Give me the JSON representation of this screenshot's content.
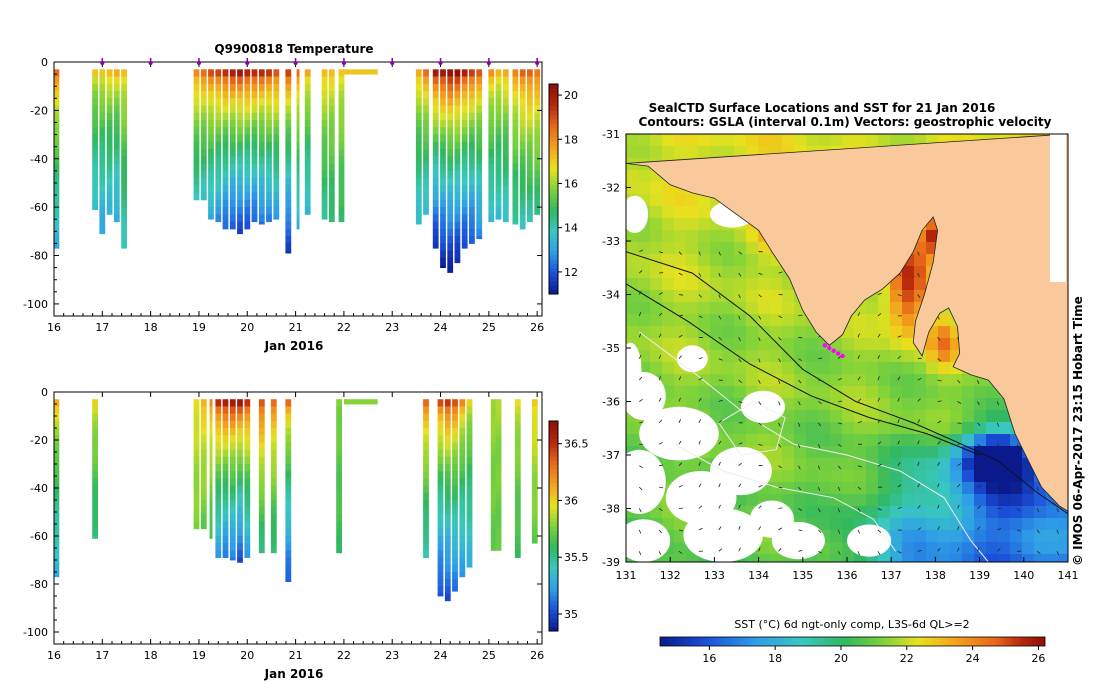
{
  "colors": {
    "ramp": [
      "#0a1a8c",
      "#1b4fd8",
      "#2f9ee8",
      "#39c7c0",
      "#31b85f",
      "#7fd23a",
      "#e8e21e",
      "#f4a21c",
      "#e8681a",
      "#b8280c",
      "#8c0f0a"
    ],
    "land": "#f9c89b",
    "profile_marker": "#8800aa",
    "track": "#ff00ff"
  },
  "chart_data": [
    {
      "id": "temperature-section",
      "type": "heatmap",
      "title": "Q9900818  Temperature",
      "xlabel": "Jan 2016",
      "ylabel": "",
      "xlim": [
        16,
        26.1
      ],
      "ylim": [
        -105,
        0
      ],
      "x_ticks": [
        "16",
        "17",
        "18",
        "19",
        "20",
        "21",
        "22",
        "23",
        "24",
        "25",
        "26"
      ],
      "y_ticks": [
        "0",
        "-20",
        "-40",
        "-60",
        "-80",
        "-100"
      ],
      "profile_markers": [
        17,
        18,
        19,
        20,
        21,
        22,
        23,
        24,
        25,
        26
      ],
      "colorbar": {
        "min": 11,
        "max": 20.5,
        "ticks": [
          "12",
          "14",
          "16",
          "18",
          "20"
        ]
      },
      "profiles": [
        {
          "t": 16.05,
          "w": 0.12,
          "depth": 77,
          "surf": 18.4,
          "bot": 13.2
        },
        {
          "t": 16.85,
          "w": 0.12,
          "depth": 61,
          "surf": 17.0,
          "bot": 13.4
        },
        {
          "t": 17.0,
          "w": 0.12,
          "depth": 71,
          "surf": 17.2,
          "bot": 13.0
        },
        {
          "t": 17.15,
          "w": 0.12,
          "depth": 63,
          "surf": 17.3,
          "bot": 13.3
        },
        {
          "t": 17.3,
          "w": 0.12,
          "depth": 66,
          "surf": 17.4,
          "bot": 13.0
        },
        {
          "t": 17.45,
          "w": 0.12,
          "depth": 77,
          "surf": 17.2,
          "bot": 13.8
        },
        {
          "t": 18.95,
          "w": 0.12,
          "depth": 57,
          "surf": 18.2,
          "bot": 13.8
        },
        {
          "t": 19.1,
          "w": 0.12,
          "depth": 57,
          "surf": 18.5,
          "bot": 13.6
        },
        {
          "t": 19.25,
          "w": 0.12,
          "depth": 65,
          "surf": 18.9,
          "bot": 13.0
        },
        {
          "t": 19.4,
          "w": 0.12,
          "depth": 66,
          "surf": 19.2,
          "bot": 12.6
        },
        {
          "t": 19.55,
          "w": 0.12,
          "depth": 69,
          "surf": 19.6,
          "bot": 12.0
        },
        {
          "t": 19.7,
          "w": 0.12,
          "depth": 69,
          "surf": 19.8,
          "bot": 11.8
        },
        {
          "t": 19.85,
          "w": 0.12,
          "depth": 71,
          "surf": 20.0,
          "bot": 11.6
        },
        {
          "t": 20.0,
          "w": 0.12,
          "depth": 69,
          "surf": 19.8,
          "bot": 11.8
        },
        {
          "t": 20.15,
          "w": 0.12,
          "depth": 66,
          "surf": 19.6,
          "bot": 12.0
        },
        {
          "t": 20.3,
          "w": 0.12,
          "depth": 67,
          "surf": 19.4,
          "bot": 12.2
        },
        {
          "t": 20.45,
          "w": 0.12,
          "depth": 66,
          "surf": 19.3,
          "bot": 12.4
        },
        {
          "t": 20.6,
          "w": 0.12,
          "depth": 65,
          "surf": 19.0,
          "bot": 12.8
        },
        {
          "t": 20.85,
          "w": 0.12,
          "depth": 79,
          "surf": 19.2,
          "bot": 11.5
        },
        {
          "t": 21.05,
          "w": 0.06,
          "depth": 69,
          "surf": 18.4,
          "bot": 13.2
        },
        {
          "t": 21.25,
          "w": 0.12,
          "depth": 63,
          "surf": 17.6,
          "bot": 13.3
        },
        {
          "t": 21.6,
          "w": 0.12,
          "depth": 65,
          "surf": 17.4,
          "bot": 14.2
        },
        {
          "t": 21.75,
          "w": 0.12,
          "depth": 66,
          "surf": 17.2,
          "bot": 14.4
        },
        {
          "t": 21.95,
          "w": 0.12,
          "depth": 66,
          "surf": 17.0,
          "bot": 14.6
        },
        {
          "t": 22.35,
          "w": 0.7,
          "depth": 5,
          "surf": 17.2,
          "bot": 17.2
        },
        {
          "t": 23.55,
          "w": 0.12,
          "depth": 67,
          "surf": 17.6,
          "bot": 13.4
        },
        {
          "t": 23.7,
          "w": 0.12,
          "depth": 63,
          "surf": 18.4,
          "bot": 13.3
        },
        {
          "t": 23.9,
          "w": 0.12,
          "depth": 77,
          "surf": 20.0,
          "bot": 11.3
        },
        {
          "t": 24.05,
          "w": 0.12,
          "depth": 85,
          "surf": 20.2,
          "bot": 11.0
        },
        {
          "t": 24.2,
          "w": 0.12,
          "depth": 87,
          "surf": 20.4,
          "bot": 11.0
        },
        {
          "t": 24.35,
          "w": 0.12,
          "depth": 83,
          "surf": 20.3,
          "bot": 11.2
        },
        {
          "t": 24.5,
          "w": 0.12,
          "depth": 77,
          "surf": 19.8,
          "bot": 11.6
        },
        {
          "t": 24.65,
          "w": 0.12,
          "depth": 75,
          "surf": 19.4,
          "bot": 11.8
        },
        {
          "t": 24.8,
          "w": 0.12,
          "depth": 73,
          "surf": 18.8,
          "bot": 12.4
        },
        {
          "t": 25.05,
          "w": 0.12,
          "depth": 66,
          "surf": 17.8,
          "bot": 13.4
        },
        {
          "t": 25.2,
          "w": 0.12,
          "depth": 65,
          "surf": 17.4,
          "bot": 13.5
        },
        {
          "t": 25.35,
          "w": 0.12,
          "depth": 66,
          "surf": 17.6,
          "bot": 13.6
        },
        {
          "t": 25.55,
          "w": 0.12,
          "depth": 67,
          "surf": 18.0,
          "bot": 14.0
        },
        {
          "t": 25.7,
          "w": 0.12,
          "depth": 69,
          "surf": 18.6,
          "bot": 13.8
        },
        {
          "t": 25.85,
          "w": 0.12,
          "depth": 66,
          "surf": 18.8,
          "bot": 14.0
        },
        {
          "t": 26.0,
          "w": 0.12,
          "depth": 63,
          "surf": 18.4,
          "bot": 14.4
        }
      ]
    },
    {
      "id": "salinity-section",
      "type": "heatmap",
      "title": "",
      "xlabel": "Jan 2016",
      "ylabel": "",
      "xlim": [
        16,
        26.1
      ],
      "ylim": [
        -105,
        0
      ],
      "x_ticks": [
        "16",
        "17",
        "18",
        "19",
        "20",
        "21",
        "22",
        "23",
        "24",
        "25",
        "26"
      ],
      "y_ticks": [
        "0",
        "-20",
        "-40",
        "-60",
        "-80",
        "-100"
      ],
      "colorbar": {
        "min": 34.85,
        "max": 36.7,
        "ticks": [
          "35",
          "35.5",
          "36",
          "36.5"
        ]
      },
      "profiles": [
        {
          "t": 16.05,
          "w": 0.12,
          "depth": 77,
          "surf": 36.1,
          "bot": 35.3
        },
        {
          "t": 16.85,
          "w": 0.12,
          "depth": 61,
          "surf": 36.0,
          "bot": 35.5
        },
        {
          "t": 18.95,
          "w": 0.12,
          "depth": 57,
          "surf": 36.0,
          "bot": 35.75
        },
        {
          "t": 19.1,
          "w": 0.12,
          "depth": 57,
          "surf": 36.1,
          "bot": 35.7
        },
        {
          "t": 19.25,
          "w": 0.06,
          "depth": 61,
          "surf": 36.2,
          "bot": 35.6
        },
        {
          "t": 19.4,
          "w": 0.12,
          "depth": 69,
          "surf": 36.5,
          "bot": 35.2
        },
        {
          "t": 19.55,
          "w": 0.12,
          "depth": 69,
          "surf": 36.6,
          "bot": 35.1
        },
        {
          "t": 19.7,
          "w": 0.12,
          "depth": 70,
          "surf": 36.6,
          "bot": 35.1
        },
        {
          "t": 19.85,
          "w": 0.12,
          "depth": 71,
          "surf": 36.6,
          "bot": 35.0
        },
        {
          "t": 20.0,
          "w": 0.12,
          "depth": 69,
          "surf": 36.5,
          "bot": 35.2
        },
        {
          "t": 20.3,
          "w": 0.12,
          "depth": 67,
          "surf": 36.4,
          "bot": 35.5
        },
        {
          "t": 20.55,
          "w": 0.12,
          "depth": 67,
          "surf": 36.3,
          "bot": 35.5
        },
        {
          "t": 20.85,
          "w": 0.12,
          "depth": 79,
          "surf": 36.3,
          "bot": 35.05
        },
        {
          "t": 21.9,
          "w": 0.12,
          "depth": 67,
          "surf": 35.8,
          "bot": 35.6
        },
        {
          "t": 22.35,
          "w": 0.7,
          "depth": 5,
          "surf": 35.8,
          "bot": 35.8
        },
        {
          "t": 23.7,
          "w": 0.12,
          "depth": 69,
          "surf": 36.3,
          "bot": 35.4
        },
        {
          "t": 24.0,
          "w": 0.12,
          "depth": 85,
          "surf": 36.4,
          "bot": 35.0
        },
        {
          "t": 24.15,
          "w": 0.12,
          "depth": 87,
          "surf": 36.5,
          "bot": 35.0
        },
        {
          "t": 24.3,
          "w": 0.12,
          "depth": 83,
          "surf": 36.4,
          "bot": 35.1
        },
        {
          "t": 24.45,
          "w": 0.12,
          "depth": 77,
          "surf": 36.2,
          "bot": 35.2
        },
        {
          "t": 24.6,
          "w": 0.12,
          "depth": 73,
          "surf": 36.0,
          "bot": 35.3
        },
        {
          "t": 25.1,
          "w": 0.12,
          "depth": 66,
          "surf": 35.85,
          "bot": 35.7
        },
        {
          "t": 25.2,
          "w": 0.12,
          "depth": 66,
          "surf": 35.85,
          "bot": 35.7
        },
        {
          "t": 25.6,
          "w": 0.12,
          "depth": 69,
          "surf": 35.95,
          "bot": 35.6
        },
        {
          "t": 25.95,
          "w": 0.12,
          "depth": 63,
          "surf": 36.05,
          "bot": 35.7
        }
      ]
    },
    {
      "id": "sst-map",
      "type": "heatmap",
      "title": "SealCTD Surface Locations and SST for 21 Jan 2016",
      "subtitle": "Contours: GSLA (interval 0.1m) Vectors: geostrophic velocity",
      "xlabel": "",
      "ylabel": "",
      "xlim": [
        131,
        141
      ],
      "ylim": [
        -39,
        -31
      ],
      "x_ticks": [
        "131",
        "132",
        "133",
        "134",
        "135",
        "136",
        "137",
        "138",
        "139",
        "140",
        "141"
      ],
      "y_ticks": [
        "-31",
        "-32",
        "-33",
        "-34",
        "-35",
        "-36",
        "-37",
        "-38",
        "-39"
      ],
      "colorbar": {
        "label": "SST (°C) 6d ngt-only comp, L3S-6d QL>=2",
        "min": 14.5,
        "max": 26.2,
        "ticks": [
          "16",
          "18",
          "20",
          "22",
          "24",
          "26"
        ]
      },
      "credit": "© IMOS 06-Apr-2017 23:15 Hobart Time",
      "land_outline": [
        [
          131,
          -31.55
        ],
        [
          131.5,
          -31.6
        ],
        [
          132,
          -31.95
        ],
        [
          132.5,
          -32.1
        ],
        [
          133,
          -32.2
        ],
        [
          133.5,
          -32.5
        ],
        [
          134,
          -32.8
        ],
        [
          134.3,
          -33.2
        ],
        [
          134.7,
          -33.7
        ],
        [
          135.0,
          -34.3
        ],
        [
          135.3,
          -34.7
        ],
        [
          135.6,
          -34.95
        ],
        [
          135.9,
          -34.75
        ],
        [
          136.1,
          -34.4
        ],
        [
          136.4,
          -34.1
        ],
        [
          136.8,
          -33.9
        ],
        [
          137.2,
          -33.6
        ],
        [
          137.5,
          -33.2
        ],
        [
          137.7,
          -32.8
        ],
        [
          137.95,
          -32.55
        ],
        [
          138.05,
          -32.8
        ],
        [
          137.95,
          -33.4
        ],
        [
          137.75,
          -34.0
        ],
        [
          137.55,
          -34.5
        ],
        [
          137.5,
          -34.9
        ],
        [
          137.7,
          -35.15
        ],
        [
          137.85,
          -34.7
        ],
        [
          138.1,
          -34.35
        ],
        [
          138.3,
          -34.25
        ],
        [
          138.5,
          -34.6
        ],
        [
          138.55,
          -35.1
        ],
        [
          138.4,
          -35.35
        ],
        [
          138.8,
          -35.5
        ],
        [
          139.2,
          -35.6
        ],
        [
          139.55,
          -35.95
        ],
        [
          139.8,
          -36.6
        ],
        [
          140.1,
          -37.1
        ],
        [
          140.4,
          -37.6
        ],
        [
          140.8,
          -37.95
        ],
        [
          141,
          -38.05
        ],
        [
          141,
          -31
        ]
      ],
      "track_points": [
        [
          135.5,
          -34.95
        ],
        [
          135.6,
          -35.0
        ],
        [
          135.7,
          -35.05
        ],
        [
          135.8,
          -35.1
        ],
        [
          135.9,
          -35.15
        ]
      ]
    }
  ]
}
